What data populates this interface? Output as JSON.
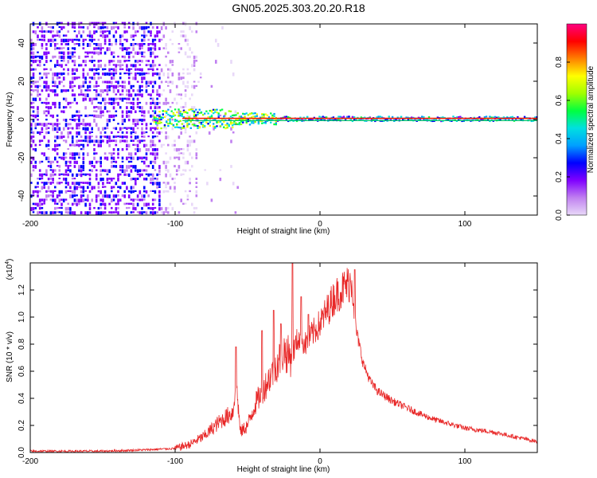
{
  "title": "GN05.2025.303.20.20.R18",
  "chart_data": [
    {
      "type": "heatmap",
      "title": "GN05.2025.303.20.20.R18",
      "xlabel": "Height of straight line (km)",
      "ylabel": "Frequency (Hz)",
      "xlim": [
        -200,
        150
      ],
      "ylim": [
        -50,
        50
      ],
      "xticks": [
        -200,
        -100,
        0,
        100
      ],
      "yticks": [
        -40,
        -20,
        0,
        20,
        40
      ],
      "colorbar": {
        "label": "Normalized spectral amplitude",
        "range": [
          0,
          1
        ],
        "ticks": [
          "0.0",
          "0.2",
          "0.4",
          "0.6",
          "0.8"
        ],
        "colors": [
          "#e8d8f8",
          "#c080f0",
          "#8000ff",
          "#0000ff",
          "#00a0ff",
          "#00e0e0",
          "#00ff40",
          "#a0ff00",
          "#ffff00",
          "#ff8000",
          "#ff0000",
          "#ff0080"
        ]
      },
      "noise_region_x": [
        -200,
        -85
      ],
      "signal_start_x": -115,
      "dominant_frequency_hz": 0
    },
    {
      "type": "line",
      "xlabel": "Height of straight line (km)",
      "ylabel": "SNR (10 * v/v)",
      "multiplier": "(x10",
      "multiplier_exp": "4",
      "xlim": [
        -200,
        150
      ],
      "ylim": [
        0,
        1.4
      ],
      "xticks": [
        -200,
        -100,
        0,
        100
      ],
      "yticks": [
        "0.0",
        "0.2",
        "0.4",
        "0.6",
        "0.8",
        "1.0",
        "1.2"
      ],
      "line_color": "#e82828",
      "series": [
        {
          "name": "SNR",
          "x": [
            -200,
            -150,
            -120,
            -100,
            -90,
            -80,
            -70,
            -60,
            -58,
            -55,
            -50,
            -45,
            -40,
            -35,
            -30,
            -25,
            -20,
            -15,
            -10,
            -5,
            0,
            5,
            10,
            15,
            20,
            22,
            25,
            30,
            35,
            40,
            50,
            60,
            70,
            80,
            90,
            100,
            120,
            150
          ],
          "y": [
            0.01,
            0.01,
            0.02,
            0.03,
            0.06,
            0.12,
            0.22,
            0.3,
            0.55,
            0.15,
            0.2,
            0.35,
            0.45,
            0.55,
            0.65,
            0.75,
            0.7,
            0.85,
            0.8,
            0.88,
            0.95,
            1.05,
            1.15,
            1.2,
            1.25,
            1.28,
            0.9,
            0.65,
            0.52,
            0.45,
            0.38,
            0.33,
            0.28,
            0.24,
            0.21,
            0.18,
            0.15,
            0.08
          ]
        }
      ],
      "spikes": [
        {
          "x": -58,
          "y": 0.78
        },
        {
          "x": -40,
          "y": 0.9
        },
        {
          "x": -32,
          "y": 1.05
        },
        {
          "x": -27,
          "y": 0.95
        },
        {
          "x": -19,
          "y": 1.4
        },
        {
          "x": -13,
          "y": 1.15
        },
        {
          "x": -8,
          "y": 1.02
        },
        {
          "x": 24,
          "y": 1.35
        }
      ]
    }
  ]
}
